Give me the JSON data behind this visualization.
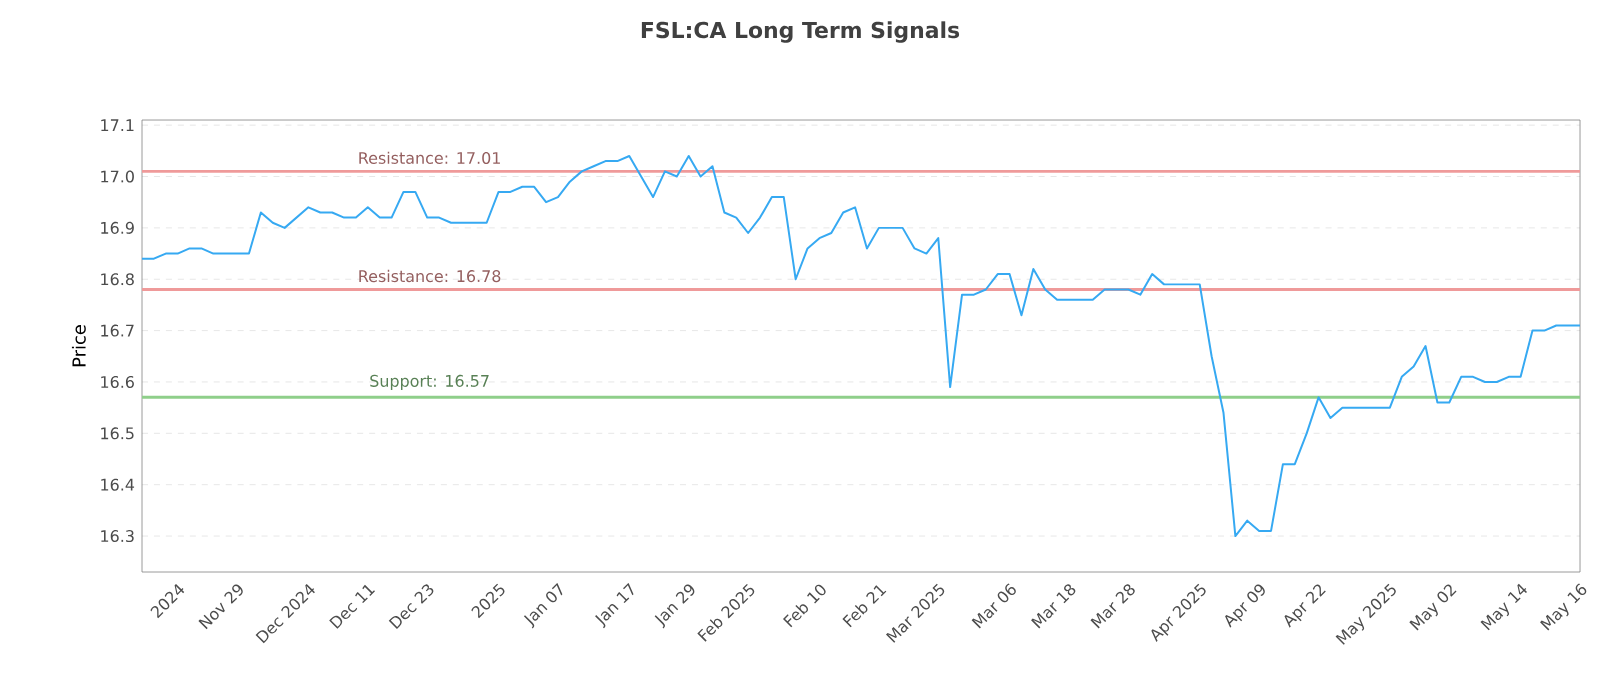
{
  "chart_data": {
    "type": "line",
    "title": "FSL:CA Long Term Signals",
    "ylabel": "Price",
    "categories": [
      null,
      null,
      null,
      "2024",
      null,
      null,
      null,
      null,
      "Nov 29",
      null,
      null,
      null,
      null,
      null,
      "Dec 2024",
      null,
      null,
      null,
      null,
      "Dec 11",
      null,
      null,
      null,
      null,
      "Dec 23",
      null,
      null,
      null,
      null,
      null,
      "2025",
      null,
      null,
      null,
      null,
      "Jan 07",
      null,
      null,
      null,
      null,
      null,
      "Jan 17",
      null,
      null,
      null,
      null,
      "Jan 29",
      null,
      null,
      null,
      null,
      "Feb 2025",
      null,
      null,
      null,
      null,
      null,
      "Feb 10",
      null,
      null,
      null,
      null,
      "Feb 21",
      null,
      null,
      null,
      null,
      "Mar 2025",
      null,
      null,
      null,
      null,
      null,
      "Mar 06",
      null,
      null,
      null,
      null,
      "Mar 18",
      null,
      null,
      null,
      null,
      "Mar 28",
      null,
      null,
      null,
      null,
      null,
      "Apr 2025",
      null,
      null,
      null,
      null,
      "Apr 09",
      null,
      null,
      null,
      null,
      "Apr 22",
      null,
      null,
      null,
      null,
      null,
      "May 2025",
      null,
      null,
      null,
      null,
      "May 02",
      null,
      null,
      null,
      null,
      null,
      "May 14",
      null,
      null,
      null,
      null,
      "May 16"
    ],
    "series": [
      {
        "color": "#36a9f2",
        "values": [
          16.84,
          16.84,
          16.85,
          16.85,
          16.86,
          16.86,
          16.85,
          16.85,
          16.85,
          16.85,
          16.93,
          16.91,
          16.9,
          16.92,
          16.94,
          16.93,
          16.93,
          16.92,
          16.92,
          16.94,
          16.92,
          16.92,
          16.97,
          16.97,
          16.92,
          16.92,
          16.91,
          16.91,
          16.91,
          16.91,
          16.97,
          16.97,
          16.98,
          16.98,
          16.95,
          16.96,
          16.99,
          17.01,
          17.02,
          17.03,
          17.03,
          17.04,
          17.0,
          16.96,
          17.01,
          17.0,
          17.04,
          17.0,
          17.02,
          16.93,
          16.92,
          16.89,
          16.92,
          16.96,
          16.96,
          16.8,
          16.86,
          16.88,
          16.89,
          16.93,
          16.94,
          16.86,
          16.9,
          16.9,
          16.9,
          16.86,
          16.85,
          16.88,
          16.59,
          16.77,
          16.77,
          16.78,
          16.81,
          16.81,
          16.73,
          16.82,
          16.78,
          16.76,
          16.76,
          16.76,
          16.76,
          16.78,
          16.78,
          16.78,
          16.77,
          16.81,
          16.79,
          16.79,
          16.79,
          16.79,
          16.65,
          16.54,
          16.3,
          16.33,
          16.31,
          16.31,
          16.44,
          16.44,
          16.5,
          16.57,
          16.53,
          16.55,
          16.55,
          16.55,
          16.55,
          16.55,
          16.61,
          16.63,
          16.67,
          16.56,
          16.56,
          16.61,
          16.61,
          16.6,
          16.6,
          16.61,
          16.61,
          16.7,
          16.7,
          16.71,
          16.71,
          16.71
        ]
      }
    ],
    "ylim": [
      16.23,
      17.11
    ],
    "yticks": [
      16.3,
      16.4,
      16.5,
      16.6,
      16.7,
      16.8,
      16.9,
      {
        "value": 17.0,
        "label": "17.0"
      },
      17.1
    ],
    "grid": "y",
    "marker": "none",
    "line_style": "solid",
    "ref_lines": [
      {
        "axis": "y",
        "value": 17.01,
        "label": "Resistance: 17.01",
        "color": "#ef9a9a"
      },
      {
        "axis": "y",
        "value": 16.78,
        "label": "Resistance: 16.78",
        "color": "#ef9a9a"
      },
      {
        "axis": "y",
        "value": 16.57,
        "label": "Support: 16.57",
        "color": "#8fcf8a"
      }
    ]
  }
}
